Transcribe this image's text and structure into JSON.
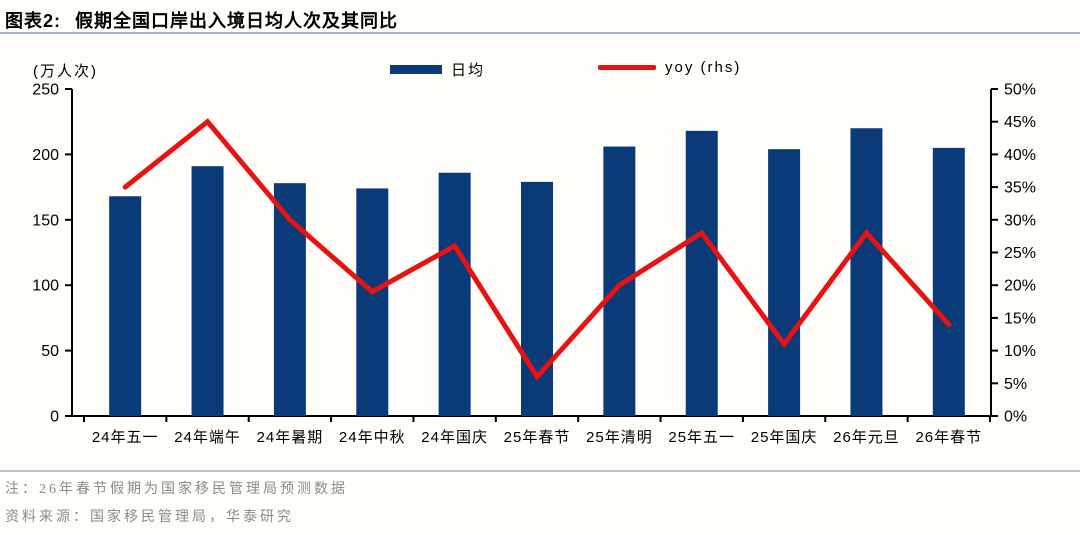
{
  "header": {
    "figure_label": "图表2:",
    "title": "假期全国口岸出入境日均人次及其同比"
  },
  "chart_data": {
    "type": "bar+line",
    "title": "假期全国口岸出入境日均人次及其同比",
    "categories": [
      "24年五一",
      "24年端午",
      "24年暑期",
      "24年中秋",
      "24年国庆",
      "25年春节",
      "25年清明",
      "25年五一",
      "25年国庆",
      "26年元旦",
      "26年春节"
    ],
    "series": [
      {
        "name": "日均",
        "type": "bar",
        "axis": "left",
        "unit": "万人次",
        "color": "#0b3a78",
        "values": [
          168,
          191,
          178,
          174,
          186,
          179,
          206,
          218,
          204,
          220,
          205
        ]
      },
      {
        "name": "yoy (rhs)",
        "type": "line",
        "axis": "right",
        "unit": "%",
        "color": "#e81212",
        "values": [
          35,
          45,
          30,
          19,
          26,
          6,
          20,
          28,
          11,
          28,
          14
        ]
      }
    ],
    "left_axis": {
      "unit": "(万人次)",
      "min": 0,
      "max": 250,
      "step": 50,
      "tick_labels": [
        "0",
        "50",
        "100",
        "150",
        "200",
        "250"
      ]
    },
    "right_axis": {
      "min": 0,
      "max": 50,
      "step": 5,
      "tick_labels": [
        "0%",
        "5%",
        "10%",
        "15%",
        "20%",
        "25%",
        "30%",
        "35%",
        "40%",
        "45%",
        "50%"
      ]
    },
    "grid": false,
    "legend_position": "top"
  },
  "footer": {
    "note": "注：26年春节假期为国家移民管理局预测数据",
    "source": "资料来源：国家移民管理局，华泰研究"
  }
}
